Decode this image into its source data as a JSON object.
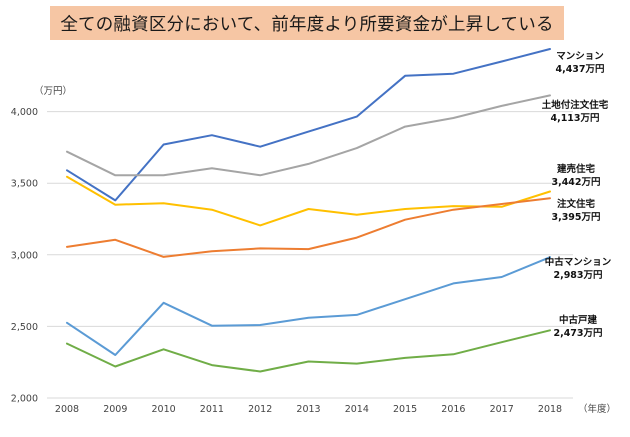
{
  "chart_data": {
    "type": "line",
    "title": "全ての融資区分において、前年度より所要資金が上昇している",
    "y_unit": "（万円）",
    "x_unit": "（年度）",
    "ylim": [
      2000,
      4500
    ],
    "yticks": [
      "2,000",
      "2,500",
      "3,000",
      "3,500",
      "4,000"
    ],
    "ytick_values": [
      2000,
      2500,
      3000,
      3500,
      4000
    ],
    "x": [
      "2008",
      "2009",
      "2010",
      "2011",
      "2012",
      "2013",
      "2014",
      "2015",
      "2016",
      "2017",
      "2018"
    ],
    "grid": true,
    "series": [
      {
        "name": "マンション",
        "value_label": "4,437万円",
        "color": "#4472c4",
        "values": [
          3590,
          3380,
          3770,
          3835,
          3755,
          3860,
          3965,
          4250,
          4265,
          4350,
          4437
        ]
      },
      {
        "name": "土地付注文住宅",
        "value_label": "4,113万円",
        "color": "#a5a5a5",
        "values": [
          3720,
          3555,
          3555,
          3605,
          3555,
          3635,
          3745,
          3895,
          3955,
          4040,
          4113
        ]
      },
      {
        "name": "建売住宅",
        "value_label": "3,442万円",
        "color": "#ffc000",
        "values": [
          3545,
          3350,
          3360,
          3315,
          3205,
          3320,
          3280,
          3320,
          3340,
          3335,
          3442
        ]
      },
      {
        "name": "注文住宅",
        "value_label": "3,395万円",
        "color": "#ed7d31",
        "values": [
          3055,
          3105,
          2985,
          3025,
          3045,
          3040,
          3120,
          3245,
          3315,
          3355,
          3395
        ]
      },
      {
        "name": "中古マンション",
        "value_label": "2,983万円",
        "color": "#5b9bd5",
        "values": [
          2525,
          2300,
          2665,
          2505,
          2510,
          2560,
          2580,
          2690,
          2800,
          2845,
          2983
        ]
      },
      {
        "name": "中古戸建",
        "value_label": "2,473万円",
        "color": "#70ad47",
        "values": [
          2380,
          2220,
          2340,
          2230,
          2185,
          2255,
          2240,
          2280,
          2305,
          2390,
          2473
        ]
      }
    ]
  }
}
